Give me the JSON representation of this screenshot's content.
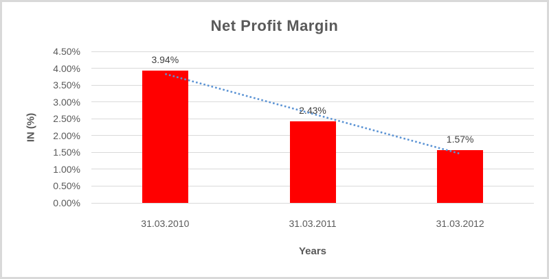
{
  "chart": {
    "title": "Net Profit Margin",
    "y_axis_title": "IN (%)",
    "x_axis_title": "Years"
  },
  "chart_data": {
    "type": "bar",
    "title": "Net Profit Margin",
    "categories": [
      "31.03.2010",
      "31.03.2011",
      "31.03.2012"
    ],
    "values": [
      3.94,
      2.43,
      1.57
    ],
    "data_labels": [
      "3.94%",
      "2.43%",
      "1.57%"
    ],
    "xlabel": "Years",
    "ylabel": "IN (%)",
    "ylim": [
      0,
      4.5
    ],
    "ytick_step": 0.5,
    "ytick_labels": [
      "0.00%",
      "0.50%",
      "1.00%",
      "1.50%",
      "2.00%",
      "2.50%",
      "3.00%",
      "3.50%",
      "4.00%",
      "4.50%"
    ],
    "grid": true,
    "legend": "none",
    "bar_color": "#ff0000",
    "trendline": {
      "type": "linear",
      "style": "dotted",
      "color": "#5b93d4"
    },
    "colors": {
      "title_text": "#595959",
      "tick_text": "#595959",
      "data_label_text": "#404040",
      "gridline": "#d9d9d9",
      "frame_border": "#d9d9d9"
    }
  }
}
